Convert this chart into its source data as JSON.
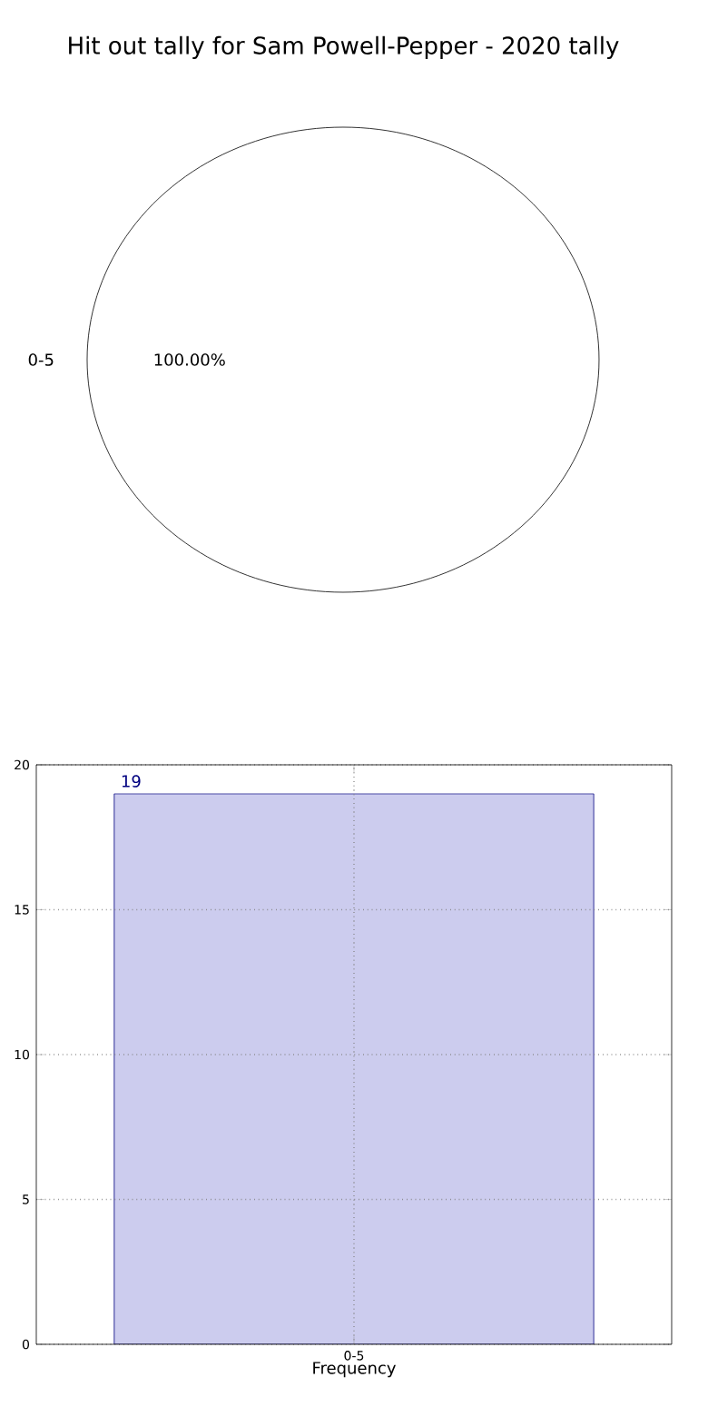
{
  "chart_data": [
    {
      "type": "pie",
      "title": "Hit out tally for Sam Powell-Pepper - 2020 tally",
      "categories": [
        "0-5"
      ],
      "values": [
        100
      ],
      "colors": [
        "#ffffff"
      ],
      "value_labels": [
        "100.00%"
      ]
    },
    {
      "type": "bar",
      "xlabel": "Frequency",
      "categories": [
        "0-5"
      ],
      "values": [
        19
      ],
      "color": "#ccccee",
      "ylim": [
        0,
        20
      ],
      "yticks": [
        0,
        5,
        10,
        15,
        20
      ],
      "grid": true,
      "data_labels": true
    }
  ]
}
